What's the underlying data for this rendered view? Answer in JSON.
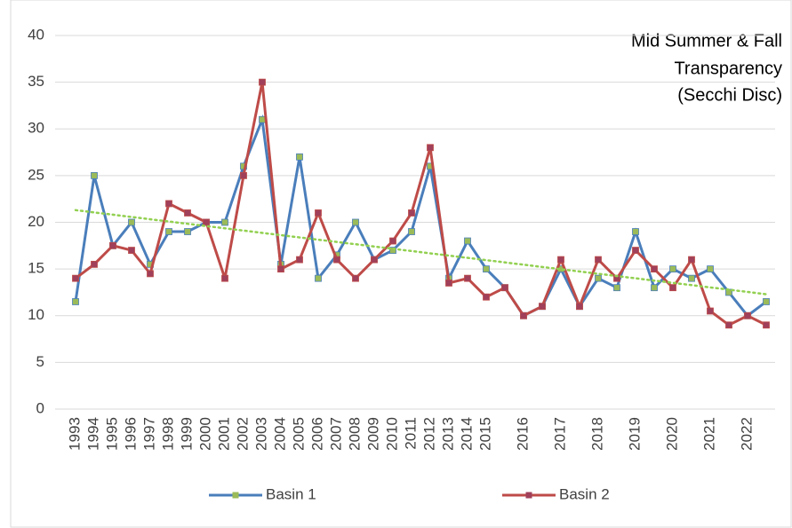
{
  "chart_data": {
    "type": "line",
    "annotation": [
      "Mid Summer & Fall",
      "Transparency",
      "(Secchi Disc)"
    ],
    "categories": [
      "1993",
      "1994",
      "1995",
      "1996",
      "1997",
      "1998",
      "1999",
      "2000",
      "2001",
      "2002",
      "2003",
      "2004",
      "2005",
      "2006",
      "2007",
      "2008",
      "2009",
      "2010",
      "2011",
      "2012",
      "2013",
      "2014",
      "2015",
      null,
      "2016",
      null,
      "2017",
      null,
      "2018",
      null,
      "2019",
      null,
      "2020",
      null,
      "2021",
      null,
      "2022",
      null
    ],
    "series": [
      {
        "name": "Basin 1",
        "color": "#4a7ebb",
        "marker_color": "#9bbb59",
        "values": [
          11.5,
          25,
          17.5,
          20,
          15.5,
          19,
          19,
          20,
          20,
          26,
          31,
          15.5,
          27,
          14,
          16.5,
          20,
          16,
          17,
          19,
          26,
          14,
          18,
          15,
          13,
          10,
          11,
          15,
          11,
          14,
          13,
          19,
          13,
          15,
          14,
          15,
          12.5,
          10,
          11.5
        ]
      },
      {
        "name": "Basin 2",
        "color": "#be4b48",
        "marker_color": "#a0405a",
        "values": [
          14,
          15.5,
          17.5,
          17,
          14.5,
          22,
          21,
          20,
          14,
          25,
          35,
          15,
          16,
          21,
          16,
          14,
          16,
          18,
          21,
          28,
          13.5,
          14,
          12,
          13,
          10,
          11,
          16,
          11,
          16,
          14,
          17,
          15,
          13,
          16,
          10.5,
          9,
          10,
          9
        ]
      }
    ],
    "trendline": {
      "start": 21.3,
      "end": 12.3,
      "color": "#92d050"
    },
    "ylim": [
      0,
      40
    ],
    "yticks": [
      0,
      5,
      10,
      15,
      20,
      25,
      30,
      35,
      40
    ],
    "grid": true
  }
}
